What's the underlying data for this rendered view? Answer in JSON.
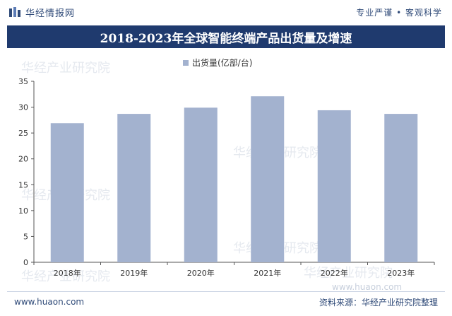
{
  "header": {
    "brand": "华经情报网",
    "slogan": "专业严谨 • 客观科学"
  },
  "title": "2018-2023年全球智能终端产品出货量及增速",
  "footer": {
    "website": "www.huaon.com",
    "source": "资料来源：华经产业研究院整理"
  },
  "watermark": {
    "text": "华经产业研究院",
    "url": "www.huaon.com"
  },
  "colors": {
    "bar": "#a3b2cf",
    "title_bg": "#1f3a6e",
    "brand": "#2f4a78"
  },
  "chart_data": {
    "type": "bar",
    "categories": [
      "2018年",
      "2019年",
      "2020年",
      "2021年",
      "2022年",
      "2023年"
    ],
    "series": [
      {
        "name": "出货量(亿部/台)",
        "values": [
          26.9,
          28.7,
          29.9,
          32.1,
          29.4,
          28.7
        ]
      }
    ],
    "ylim": [
      0,
      35
    ],
    "yticks": [
      0,
      5,
      10,
      15,
      20,
      25,
      30,
      35
    ],
    "legend": "top-center",
    "grid": false
  }
}
